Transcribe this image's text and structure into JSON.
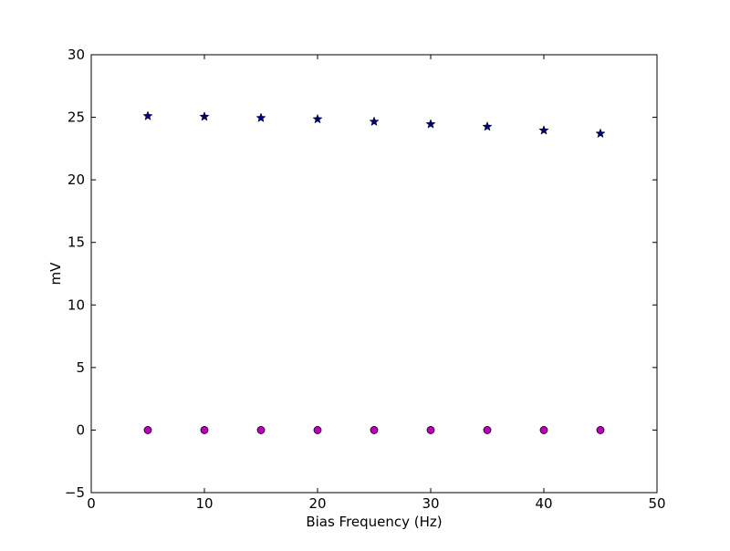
{
  "chart_data": {
    "type": "scatter",
    "title": "",
    "xlabel": "Bias Frequency (Hz)",
    "ylabel": "mV",
    "xlim": [
      0,
      50
    ],
    "ylim": [
      -5,
      30
    ],
    "xticks": [
      0,
      10,
      20,
      30,
      40,
      50
    ],
    "yticks": [
      -5,
      0,
      5,
      10,
      15,
      20,
      25,
      30
    ],
    "xtick_labels": [
      "0",
      "10",
      "20",
      "30",
      "40",
      "50"
    ],
    "ytick_labels": [
      "−5",
      "0",
      "5",
      "10",
      "15",
      "20",
      "25",
      "30"
    ],
    "grid": false,
    "legend": "none",
    "series": [
      {
        "marker": "star",
        "color": "#000080",
        "x": [
          5,
          10,
          15,
          20,
          25,
          30,
          35,
          40,
          45
        ],
        "y": [
          25.1,
          25.05,
          24.95,
          24.85,
          24.65,
          24.45,
          24.25,
          23.95,
          23.7
        ]
      },
      {
        "marker": "circle",
        "color": "#bf00bf",
        "x": [
          5,
          10,
          15,
          20,
          25,
          30,
          35,
          40,
          45
        ],
        "y": [
          0,
          0,
          0,
          0,
          0,
          0,
          0,
          0,
          0
        ]
      }
    ]
  }
}
